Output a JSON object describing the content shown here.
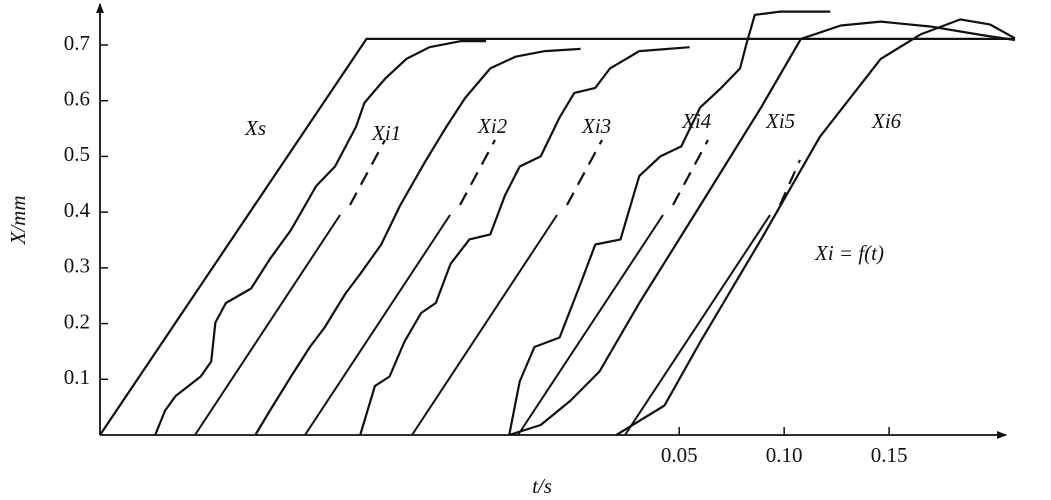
{
  "chart_data": {
    "type": "line",
    "x_label": "t/s",
    "y_label": "X/mm",
    "annotation": "Xi = f(t)",
    "xlim": [
      -0.226,
      0.21
    ],
    "ylim": [
      0,
      0.77
    ],
    "xticks": [
      0.05,
      {
        "value": 0.1,
        "label": "0.10"
      },
      0.15
    ],
    "yticks": [
      0.1,
      0.2,
      0.3,
      0.4,
      0.5,
      0.6,
      0.7
    ],
    "series": [
      {
        "name": "Xs",
        "color": "#111111",
        "x": [
          -0.226,
          -0.099,
          0.21
        ],
        "values": [
          0,
          0.711,
          0.711
        ]
      },
      {
        "name": "Xi1",
        "color": "#111111",
        "x": [
          -0.1997,
          -0.195,
          -0.19,
          -0.178,
          -0.173,
          -0.171,
          -0.166,
          -0.154,
          -0.145,
          -0.135,
          -0.123,
          -0.114,
          -0.104,
          -0.1,
          -0.09,
          -0.08,
          -0.069,
          -0.054,
          -0.042
        ],
        "values": [
          0,
          0.044,
          0.07,
          0.105,
          0.132,
          0.202,
          0.237,
          0.263,
          0.316,
          0.368,
          0.447,
          0.482,
          0.553,
          0.596,
          0.64,
          0.675,
          0.696,
          0.707,
          0.707
        ]
      },
      {
        "name": "Xi2",
        "color": "#111111",
        "x": [
          -0.152,
          -0.145,
          -0.135,
          -0.126,
          -0.119,
          -0.109,
          -0.102,
          -0.092,
          -0.083,
          -0.071,
          -0.061,
          -0.052,
          -0.04,
          -0.028,
          -0.014,
          0.003
        ],
        "values": [
          0,
          0.044,
          0.105,
          0.158,
          0.193,
          0.254,
          0.289,
          0.342,
          0.412,
          0.491,
          0.553,
          0.605,
          0.658,
          0.679,
          0.689,
          0.693
        ]
      },
      {
        "name": "Xi3",
        "color": "#111111",
        "x": [
          -0.102,
          -0.095,
          -0.088,
          -0.081,
          -0.073,
          -0.066,
          -0.059,
          -0.05,
          -0.04,
          -0.033,
          -0.026,
          -0.016,
          -0.007,
          0.0,
          0.01,
          0.017,
          0.031,
          0.055
        ],
        "values": [
          0,
          0.088,
          0.105,
          0.167,
          0.219,
          0.237,
          0.307,
          0.351,
          0.36,
          0.43,
          0.482,
          0.5,
          0.57,
          0.614,
          0.623,
          0.658,
          0.689,
          0.696
        ]
      },
      {
        "name": "Xi4",
        "color": "#111111",
        "x": [
          -0.031,
          -0.026,
          -0.019,
          -0.007,
          0.003,
          0.01,
          0.022,
          0.031,
          0.041,
          0.051,
          0.06,
          0.07,
          0.079,
          0.082,
          0.086,
          0.098,
          0.122
        ],
        "values": [
          0,
          0.096,
          0.158,
          0.175,
          0.272,
          0.342,
          0.351,
          0.465,
          0.5,
          0.518,
          0.588,
          0.623,
          0.658,
          0.702,
          0.754,
          0.76,
          0.76
        ]
      },
      {
        "name": "Xi5",
        "color": "#111111",
        "x": [
          -0.031,
          -0.016,
          -0.002,
          0.012,
          0.031,
          0.06,
          0.089,
          0.108,
          0.127,
          0.146,
          0.17,
          0.194,
          0.21
        ],
        "values": [
          0,
          0.018,
          0.061,
          0.114,
          0.237,
          0.412,
          0.588,
          0.711,
          0.735,
          0.742,
          0.733,
          0.718,
          0.709
        ]
      },
      {
        "name": "Xi6",
        "color": "#111111",
        "x": [
          0.02,
          0.043,
          0.06,
          0.089,
          0.117,
          0.146,
          0.165,
          0.184,
          0.198,
          0.21
        ],
        "values": [
          0,
          0.053,
          0.167,
          0.351,
          0.535,
          0.675,
          0.719,
          0.746,
          0.737,
          0.712
        ]
      }
    ]
  }
}
